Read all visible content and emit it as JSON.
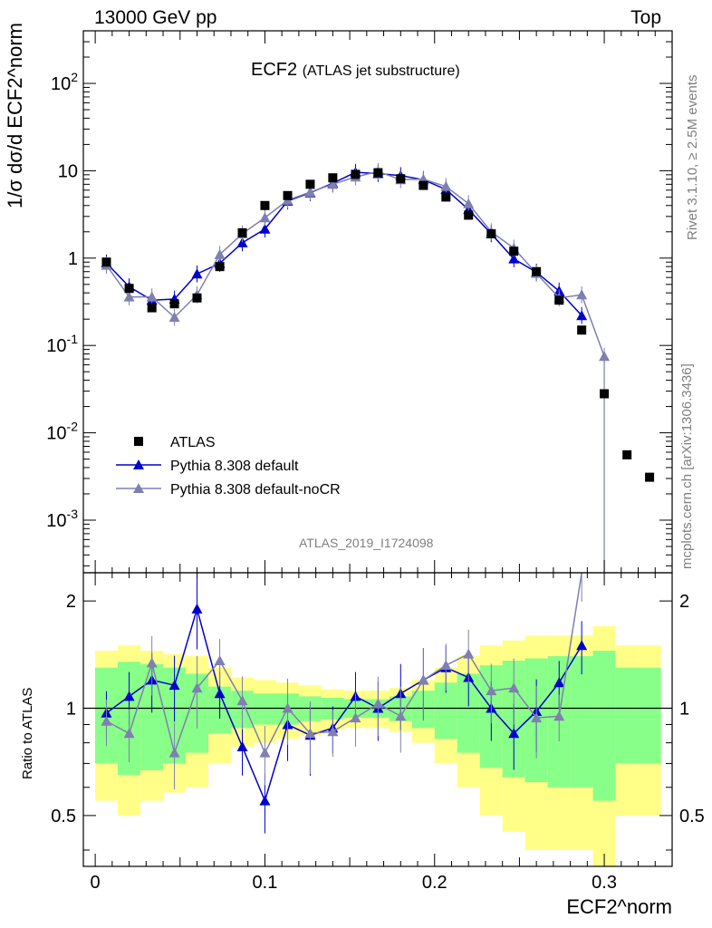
{
  "header": {
    "left": "13000 GeV pp",
    "right": "Top"
  },
  "title": {
    "main": "ECF2",
    "sub": "(ATLAS jet substructure)"
  },
  "analysis_id": "ATLAS_2019_I1724098",
  "side": {
    "events": "Rivet 3.1.10, ≥ 2.5M events",
    "source": "mcplots.cern.ch [arXiv:1306.3436]"
  },
  "ylabel_top": "1/σ dσ/d ECF2^norm",
  "ylabel_bottom": "Ratio to ATLAS",
  "xlabel": "ECF2^norm",
  "colors": {
    "atlas": "#000000",
    "default": "#0000cc",
    "nocr": "#7f7fb2",
    "band_yellow": "#ffff88",
    "band_green": "#88ff88"
  },
  "chart_data": {
    "type": "line",
    "x_ticks": [
      "0",
      "0.1",
      "0.2",
      "0.3"
    ],
    "top_y_ticks": [
      "10^-3",
      "10^-2",
      "10^-1",
      "1",
      "10",
      "10^2"
    ],
    "ratio_ticks": [
      "0.5",
      "1",
      "2"
    ],
    "xlim": [
      -0.007,
      0.34
    ],
    "top_ylim": [
      0.00025,
      400
    ],
    "ratio_ylim": [
      0.36,
      2.4
    ],
    "log_y": true,
    "legend": [
      {
        "name": "ATLAS",
        "marker": "square"
      },
      {
        "name": "Pythia 8.308 default",
        "marker": "triangle"
      },
      {
        "name": "Pythia 8.308 default-noCR",
        "marker": "triangle"
      }
    ],
    "atlas": {
      "x": [
        0.0066,
        0.02,
        0.0334,
        0.0467,
        0.06,
        0.0734,
        0.0867,
        0.1,
        0.1134,
        0.1267,
        0.14,
        0.1534,
        0.1667,
        0.18,
        0.1934,
        0.2067,
        0.22,
        0.2334,
        0.2467,
        0.26,
        0.2734,
        0.2867,
        0.3,
        0.3134,
        0.3267
      ],
      "y": [
        0.9,
        0.45,
        0.27,
        0.3,
        0.35,
        0.8,
        1.95,
        4.0,
        5.2,
        7.0,
        8.3,
        9.1,
        9.5,
        8.1,
        6.8,
        5.0,
        3.1,
        1.9,
        1.2,
        0.7,
        0.33,
        0.15,
        0.028,
        0.0056,
        0.0031
      ]
    },
    "series": [
      {
        "name": "Pythia 8.308 default",
        "x": [
          0.0066,
          0.02,
          0.0334,
          0.0467,
          0.06,
          0.0734,
          0.0867,
          0.1,
          0.1134,
          0.1267,
          0.14,
          0.1534,
          0.1667,
          0.18,
          0.1934,
          0.2067,
          0.22,
          0.2334,
          0.2467,
          0.26,
          0.2734,
          0.2867
        ],
        "y": [
          0.88,
          0.47,
          0.33,
          0.34,
          0.66,
          0.87,
          1.5,
          2.15,
          4.5,
          5.6,
          7.2,
          9.6,
          9.3,
          8.8,
          7.9,
          6.1,
          3.6,
          1.9,
          0.98,
          0.69,
          0.42,
          0.22
        ],
        "ratio": [
          0.97,
          1.08,
          1.2,
          1.16,
          1.9,
          1.1,
          0.78,
          0.55,
          0.9,
          0.84,
          0.88,
          1.08,
          1.0,
          1.1,
          1.2,
          1.3,
          1.22,
          1.0,
          0.85,
          0.98,
          1.18,
          1.5
        ]
      },
      {
        "name": "Pythia 8.308 default-noCR",
        "x": [
          0.0066,
          0.02,
          0.0334,
          0.0467,
          0.06,
          0.0734,
          0.0867,
          0.1,
          0.1134,
          0.1267,
          0.14,
          0.1534,
          0.1667,
          0.18,
          0.1934,
          0.2067,
          0.22,
          0.2334,
          0.2467,
          0.26,
          0.2734,
          0.2867,
          0.3
        ],
        "y": [
          0.83,
          0.36,
          0.36,
          0.21,
          0.38,
          1.1,
          1.9,
          2.9,
          4.6,
          5.7,
          7.0,
          8.5,
          9.8,
          7.9,
          8.0,
          6.6,
          4.2,
          2.0,
          1.3,
          0.67,
          0.35,
          0.38,
          0.075
        ],
        "ratio": [
          0.92,
          0.85,
          1.34,
          0.75,
          1.14,
          1.36,
          1.05,
          0.75,
          1.0,
          0.85,
          0.86,
          0.94,
          1.03,
          0.95,
          1.2,
          1.32,
          1.42,
          1.12,
          1.14,
          0.94,
          0.95,
          2.4,
          null
        ]
      }
    ]
  }
}
